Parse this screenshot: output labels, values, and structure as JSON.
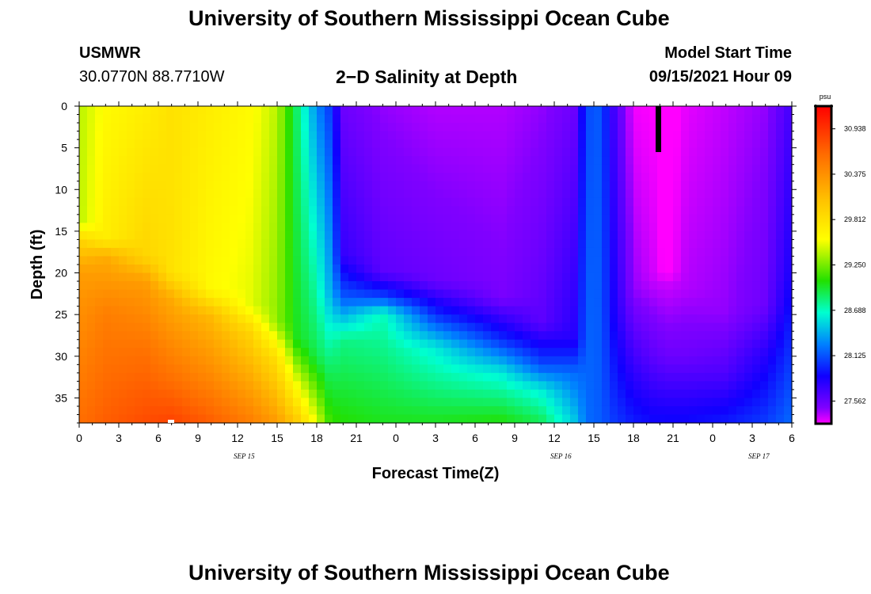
{
  "header": {
    "title_top": "University of Southern Mississippi Ocean Cube",
    "title_bottom": "University of Southern Mississippi Ocean Cube",
    "station": "USMWR",
    "coords": "30.0770N  88.7710W",
    "model_start_label": "Model Start Time",
    "model_start_value": "09/15/2021 Hour 09"
  },
  "chart_data": {
    "type": "heatmap",
    "title": "2−D Salinity at Depth",
    "xlabel": "Forecast Time(Z)",
    "ylabel": "Depth (ft)",
    "x_range_hours": [
      0,
      54
    ],
    "x_ticks": [
      {
        "hour": 0,
        "label": "0"
      },
      {
        "hour": 3,
        "label": "3"
      },
      {
        "hour": 6,
        "label": "6"
      },
      {
        "hour": 9,
        "label": "9"
      },
      {
        "hour": 12,
        "label": "12"
      },
      {
        "hour": 15,
        "label": "15"
      },
      {
        "hour": 18,
        "label": "18"
      },
      {
        "hour": 21,
        "label": "21"
      },
      {
        "hour": 24,
        "label": "0"
      },
      {
        "hour": 27,
        "label": "3"
      },
      {
        "hour": 30,
        "label": "6"
      },
      {
        "hour": 33,
        "label": "9"
      },
      {
        "hour": 36,
        "label": "12"
      },
      {
        "hour": 39,
        "label": "15"
      },
      {
        "hour": 42,
        "label": "18"
      },
      {
        "hour": 45,
        "label": "21"
      },
      {
        "hour": 48,
        "label": "0"
      },
      {
        "hour": 51,
        "label": "3"
      },
      {
        "hour": 54,
        "label": "6"
      }
    ],
    "date_labels": [
      {
        "hour": 12.5,
        "label": "SEP 15"
      },
      {
        "hour": 36.5,
        "label": "SEP 16"
      },
      {
        "hour": 51.5,
        "label": "SEP 17"
      }
    ],
    "y_range_ft": [
      0,
      38
    ],
    "y_ticks": [
      0,
      5,
      10,
      15,
      20,
      25,
      30,
      35
    ],
    "colorbar": {
      "unit": "psu",
      "range": [
        27.28,
        31.22
      ],
      "labels": [
        "30.938",
        "30.375",
        "29.812",
        "29.250",
        "28.688",
        "28.125",
        "27.562"
      ],
      "stops": [
        {
          "t": 0.0,
          "color": "#ff0000"
        },
        {
          "t": 0.15,
          "color": "#ff6a00"
        },
        {
          "t": 0.3,
          "color": "#ffc400"
        },
        {
          "t": 0.42,
          "color": "#ffff00"
        },
        {
          "t": 0.55,
          "color": "#22e000"
        },
        {
          "t": 0.65,
          "color": "#00ffd0"
        },
        {
          "t": 0.75,
          "color": "#0080ff"
        },
        {
          "t": 0.85,
          "color": "#1000ff"
        },
        {
          "t": 0.95,
          "color": "#8000ff"
        },
        {
          "t": 1.0,
          "color": "#ff00ff"
        }
      ]
    },
    "salinity_columns": [
      {
        "hour": 0,
        "profile": [
          [
            0,
            29.4
          ],
          [
            14,
            29.4
          ],
          [
            16,
            29.9
          ],
          [
            20,
            30.3
          ],
          [
            38,
            30.6
          ]
        ]
      },
      {
        "hour": 2,
        "profile": [
          [
            0,
            29.6
          ],
          [
            16,
            29.7
          ],
          [
            18,
            30.2
          ],
          [
            25,
            30.5
          ],
          [
            38,
            30.7
          ]
        ]
      },
      {
        "hour": 5,
        "profile": [
          [
            0,
            29.7
          ],
          [
            18,
            29.9
          ],
          [
            21,
            30.3
          ],
          [
            30,
            30.6
          ],
          [
            38,
            30.8
          ]
        ]
      },
      {
        "hour": 7,
        "profile": [
          [
            0,
            29.8
          ],
          [
            20,
            29.8
          ],
          [
            23,
            30.2
          ],
          [
            33,
            30.6
          ],
          [
            38,
            30.85
          ]
        ]
      },
      {
        "hour": 10,
        "profile": [
          [
            0,
            29.7
          ],
          [
            22,
            29.6
          ],
          [
            25,
            30.1
          ],
          [
            34,
            30.5
          ],
          [
            38,
            30.7
          ]
        ]
      },
      {
        "hour": 13,
        "profile": [
          [
            0,
            29.6
          ],
          [
            24,
            29.5
          ],
          [
            27,
            29.9
          ],
          [
            38,
            30.5
          ]
        ]
      },
      {
        "hour": 15,
        "profile": [
          [
            0,
            29.4
          ],
          [
            26,
            29.3
          ],
          [
            30,
            29.8
          ],
          [
            38,
            30.3
          ]
        ]
      },
      {
        "hour": 16.5,
        "profile": [
          [
            0,
            28.85
          ],
          [
            28,
            29.0
          ],
          [
            33,
            29.5
          ],
          [
            38,
            30.0
          ]
        ]
      },
      {
        "hour": 18,
        "profile": [
          [
            0,
            28.3
          ],
          [
            30,
            28.9
          ],
          [
            38,
            29.5
          ]
        ]
      },
      {
        "hour": 19,
        "profile": [
          [
            0,
            28.05
          ],
          [
            22,
            28.4
          ],
          [
            30,
            28.8
          ],
          [
            38,
            29.1
          ]
        ]
      },
      {
        "hour": 20,
        "profile": [
          [
            0,
            27.55
          ],
          [
            18,
            27.75
          ],
          [
            23,
            28.15
          ],
          [
            28,
            28.8
          ],
          [
            38,
            29.05
          ]
        ]
      },
      {
        "hour": 23,
        "profile": [
          [
            0,
            27.45
          ],
          [
            20,
            27.6
          ],
          [
            23,
            28.1
          ],
          [
            25,
            28.7
          ],
          [
            38,
            29.0
          ]
        ]
      },
      {
        "hour": 27,
        "profile": [
          [
            0,
            27.4
          ],
          [
            21,
            27.55
          ],
          [
            25,
            28.0
          ],
          [
            29,
            28.6
          ],
          [
            38,
            29.0
          ]
        ]
      },
      {
        "hour": 32,
        "profile": [
          [
            0,
            27.4
          ],
          [
            23,
            27.5
          ],
          [
            28,
            28.0
          ],
          [
            32,
            28.6
          ],
          [
            38,
            29.05
          ]
        ]
      },
      {
        "hour": 35,
        "profile": [
          [
            0,
            27.45
          ],
          [
            26,
            27.6
          ],
          [
            31,
            28.1
          ],
          [
            34,
            28.6
          ],
          [
            38,
            28.9
          ]
        ]
      },
      {
        "hour": 37.5,
        "profile": [
          [
            0,
            27.55
          ],
          [
            28,
            27.8
          ],
          [
            32,
            28.2
          ],
          [
            38,
            28.5
          ]
        ]
      },
      {
        "hour": 38.5,
        "profile": [
          [
            0,
            28.1
          ],
          [
            38,
            28.2
          ]
        ]
      },
      {
        "hour": 39.5,
        "profile": [
          [
            0,
            28.15
          ],
          [
            38,
            28.15
          ]
        ]
      },
      {
        "hour": 40.5,
        "profile": [
          [
            0,
            27.7
          ],
          [
            25,
            27.85
          ],
          [
            38,
            28.05
          ]
        ]
      },
      {
        "hour": 42,
        "profile": [
          [
            0,
            27.3
          ],
          [
            22,
            27.45
          ],
          [
            30,
            27.7
          ],
          [
            38,
            27.95
          ]
        ]
      },
      {
        "hour": 43.5,
        "profile": [
          [
            0,
            27.28
          ],
          [
            20,
            27.35
          ],
          [
            30,
            27.6
          ],
          [
            38,
            27.9
          ]
        ]
      },
      {
        "hour": 44.5,
        "profile": [
          [
            0,
            27.22
          ],
          [
            20,
            27.25
          ],
          [
            21,
            27.35
          ],
          [
            30,
            27.55
          ],
          [
            38,
            27.9
          ]
        ]
      },
      {
        "hour": 46,
        "profile": [
          [
            0,
            27.32
          ],
          [
            22,
            27.4
          ],
          [
            30,
            27.55
          ],
          [
            38,
            27.9
          ]
        ]
      },
      {
        "hour": 49,
        "profile": [
          [
            0,
            27.38
          ],
          [
            25,
            27.45
          ],
          [
            32,
            27.65
          ],
          [
            38,
            27.95
          ]
        ]
      },
      {
        "hour": 52,
        "profile": [
          [
            0,
            27.45
          ],
          [
            24,
            27.55
          ],
          [
            30,
            27.8
          ],
          [
            38,
            28.05
          ]
        ]
      },
      {
        "hour": 54,
        "profile": [
          [
            0,
            27.7
          ],
          [
            20,
            27.85
          ],
          [
            30,
            28.05
          ],
          [
            38,
            28.2
          ]
        ]
      }
    ]
  }
}
